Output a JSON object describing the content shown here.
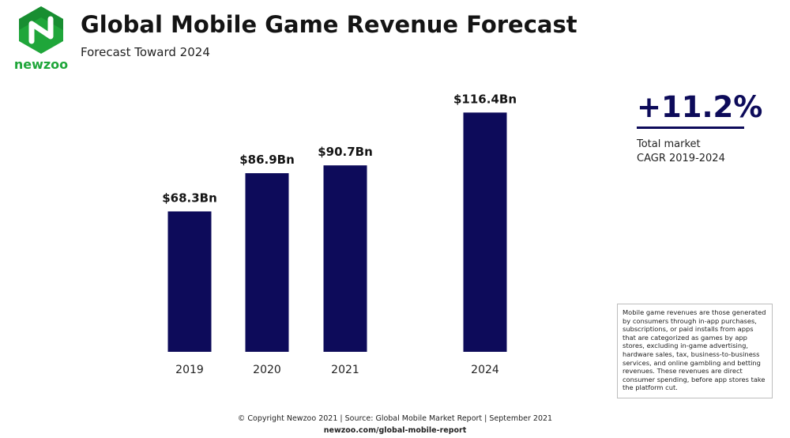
{
  "brand": {
    "logo_text": "newzoo",
    "colors": {
      "green": "#1fa63a",
      "dark_green": "#137a2a",
      "navy": "#0d0b5a"
    }
  },
  "header": {
    "title": "Global Mobile Game Revenue Forecast",
    "subtitle": "Forecast Toward 2024"
  },
  "chart_data": {
    "type": "bar",
    "categories": [
      "2019",
      "2020",
      "2021",
      "2024"
    ],
    "values": [
      68.3,
      86.9,
      90.7,
      116.4
    ],
    "data_labels": [
      "$68.3Bn",
      "$86.9Bn",
      "$90.7Bn",
      "$116.4Bn"
    ],
    "unit": "Bn USD",
    "ylim": [
      0,
      130
    ],
    "grid": false,
    "legend": "none",
    "bar_color": "#0d0b5a"
  },
  "kpi": {
    "value": "+11.2%",
    "description": "Total market\nCAGR 2019-2024"
  },
  "note": "Mobile game revenues are those generated by consumers through in-app purchases, subscriptions, or paid installs from apps that are categorized as games by app stores, excluding in-game advertising, hardware sales, tax, business-to-business services, and online gambling and betting revenues. These revenues are direct consumer spending, before app stores take the platform cut.",
  "footer": {
    "copyright": "© Copyright Newzoo 2021 | Source: Global Mobile Market Report | September 2021",
    "url": "newzoo.com/global-mobile-report"
  }
}
